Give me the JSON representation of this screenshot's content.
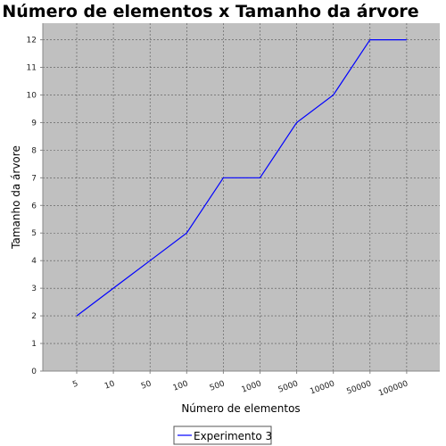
{
  "chart_data": {
    "type": "line",
    "title": "Número de elementos x Tamanho da árvore",
    "xlabel": "Número de elementos",
    "ylabel": "Tamanho da árvore",
    "categories": [
      "5",
      "10",
      "50",
      "100",
      "500",
      "1000",
      "5000",
      "10000",
      "50000",
      "100000"
    ],
    "series": [
      {
        "name": "Experimento 3",
        "color": "#0000ff",
        "values": [
          2,
          3,
          4,
          5,
          7,
          7,
          9,
          10,
          12,
          12
        ]
      }
    ],
    "ylim": [
      0,
      12.6
    ],
    "yticks": [
      0,
      1,
      2,
      3,
      4,
      5,
      6,
      7,
      8,
      9,
      10,
      11,
      12
    ],
    "grid": true,
    "legend_position": "bottom-center",
    "plot_background": "#c0c0c0",
    "grid_color": "#555555"
  }
}
